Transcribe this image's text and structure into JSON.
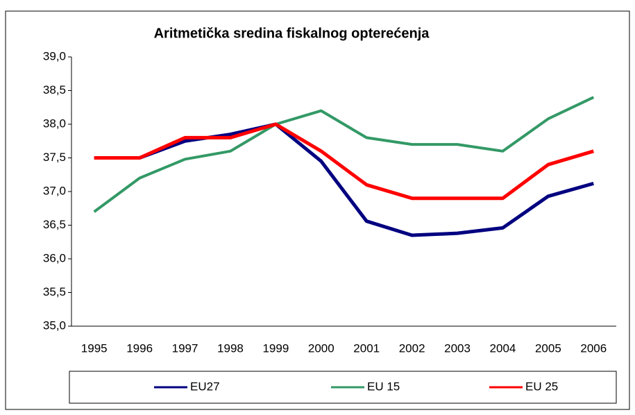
{
  "chart_data": {
    "type": "line",
    "title": "Aritmetička sredina fiskalnog opterećenja",
    "categories": [
      "1995",
      "1996",
      "1997",
      "1998",
      "1999",
      "2000",
      "2001",
      "2002",
      "2003",
      "2004",
      "2005",
      "2006"
    ],
    "series": [
      {
        "name": "EU27",
        "color": "#000080",
        "values": [
          37.5,
          37.5,
          37.75,
          37.85,
          38.0,
          37.45,
          36.56,
          36.35,
          36.38,
          36.46,
          36.93,
          37.12
        ]
      },
      {
        "name": "EU 15",
        "color": "#339966",
        "values": [
          36.7,
          37.2,
          37.48,
          37.6,
          38.0,
          38.2,
          37.8,
          37.7,
          37.7,
          37.6,
          38.08,
          38.4
        ]
      },
      {
        "name": "EU 25",
        "color": "#ff0000",
        "values": [
          37.5,
          37.5,
          37.8,
          37.8,
          38.0,
          37.6,
          37.1,
          36.9,
          36.9,
          36.9,
          37.4,
          37.6
        ]
      }
    ],
    "ylim": [
      35,
      39
    ],
    "yticks": [
      {
        "value": 35,
        "label": "35,0"
      },
      {
        "value": 35.5,
        "label": "35,5"
      },
      {
        "value": 36,
        "label": "36,0"
      },
      {
        "value": 36.5,
        "label": "36,5"
      },
      {
        "value": 37,
        "label": "37,0"
      },
      {
        "value": 37.5,
        "label": "37,5"
      },
      {
        "value": 38,
        "label": "38,0"
      },
      {
        "value": 38.5,
        "label": "38,5"
      },
      {
        "value": 39,
        "label": "39,0"
      }
    ],
    "grid": false,
    "legend": "bottom"
  }
}
